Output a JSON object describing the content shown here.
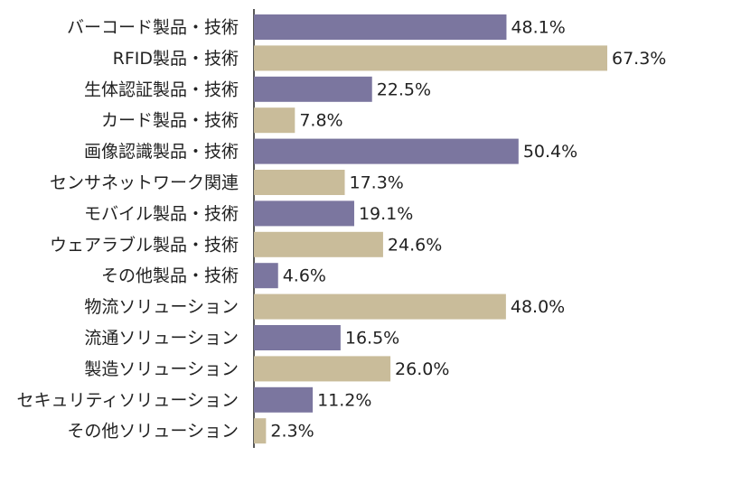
{
  "chart_data": {
    "type": "hbar",
    "categories": [
      "バーコード製品・技術",
      "RFID製品・技術",
      "生体認証製品・技術",
      "カード製品・技術",
      "画像認識製品・技術",
      "センサネットワーク関連",
      "モバイル製品・技術",
      "ウェアラブル製品・技術",
      "その他製品・技術",
      "物流ソリューション",
      "流通ソリューション",
      "製造ソリューション",
      "セキュリティソリューション",
      "その他ソリューション"
    ],
    "values": [
      48.1,
      67.3,
      22.5,
      7.8,
      50.4,
      17.3,
      19.1,
      24.6,
      4.6,
      48.0,
      16.5,
      26.0,
      11.2,
      2.3
    ],
    "value_labels": [
      "48.1%",
      "67.3%",
      "22.5%",
      "7.8%",
      "50.4%",
      "17.3%",
      "19.1%",
      "24.6%",
      "4.6%",
      "48.0%",
      "16.5%",
      "26.0%",
      "11.2%",
      "2.3%"
    ],
    "colors": [
      "#7b769f",
      "#c9bc9a"
    ]
  }
}
